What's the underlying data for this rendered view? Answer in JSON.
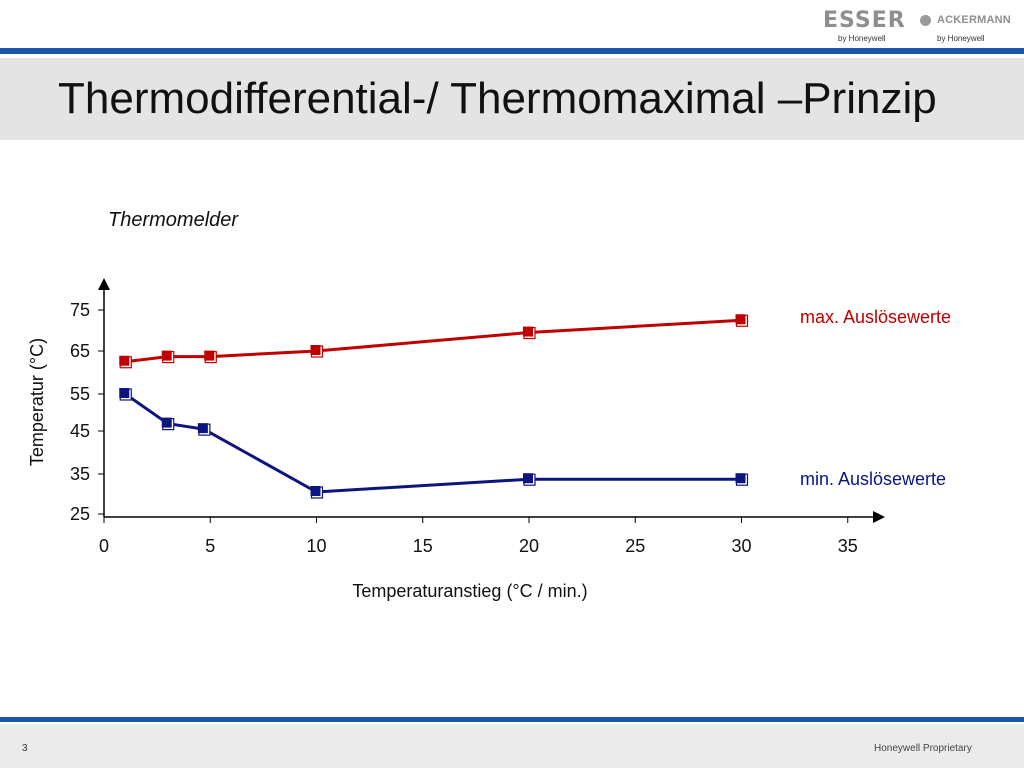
{
  "branding": {
    "esser": "ESSER",
    "esser_sub": "by Honeywell",
    "ackermann": "ACKERMANN",
    "ackermann_sub": "by Honeywell"
  },
  "slide": {
    "title": "Thermodifferential-/ Thermomaximal –Prinzip",
    "page_number": "3",
    "footer_text": "Honeywell Proprietary"
  },
  "colors": {
    "accent_bar": "#1b55a8",
    "max_series": "#c00000",
    "min_series": "#0c1480"
  },
  "chart_data": {
    "type": "line",
    "title": "Thermomelder",
    "xlabel": "Temperaturanstieg (°C / min.)",
    "ylabel": "Temperatur (°C)",
    "x_ticks": [
      "0",
      "5",
      "10",
      "15",
      "20",
      "25",
      "30",
      "35"
    ],
    "y_ticks": [
      "25",
      "35",
      "45",
      "55",
      "65",
      "75"
    ],
    "series": [
      {
        "name": "max. Auslösewerte",
        "color": "#c00000",
        "points": [
          [
            1,
            62.5
          ],
          [
            3,
            63.7
          ],
          [
            5,
            63.7
          ],
          [
            10,
            65
          ],
          [
            20,
            69.5
          ],
          [
            30,
            72.5
          ]
        ]
      },
      {
        "name": "min. Auslösewerte",
        "color": "#0c1480",
        "points": [
          [
            1,
            55
          ],
          [
            3,
            47
          ],
          [
            4.7,
            45.5
          ],
          [
            10,
            30.5
          ],
          [
            20,
            33.7
          ],
          [
            30,
            33.7
          ]
        ]
      }
    ]
  }
}
